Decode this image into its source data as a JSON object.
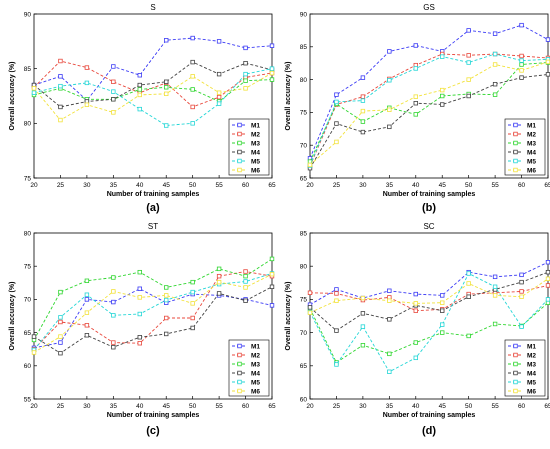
{
  "legend_labels": [
    "M1",
    "M2",
    "M3",
    "M4",
    "M5",
    "M6"
  ],
  "chart_data": [
    {
      "type": "line",
      "panel_label": "(a)",
      "title": "S",
      "xlabel": "Number of training samples",
      "ylabel": "Overall accuracy (%)",
      "x": [
        20,
        25,
        30,
        35,
        40,
        45,
        50,
        55,
        60,
        65
      ],
      "xlim": [
        20,
        65
      ],
      "ylim": [
        75,
        90
      ],
      "yticks": [
        75,
        80,
        85,
        90
      ],
      "grid": false,
      "legend_position": "bottom-right",
      "series": [
        {
          "name": "M1",
          "color": "#3b3bf5",
          "values": [
            83.5,
            84.3,
            82.1,
            85.2,
            84.4,
            87.6,
            87.8,
            87.5,
            86.9,
            87.1
          ]
        },
        {
          "name": "M2",
          "color": "#e8473b",
          "values": [
            83.3,
            85.7,
            85.1,
            83.8,
            82.8,
            83.7,
            81.5,
            82.4,
            84.2,
            84.6
          ]
        },
        {
          "name": "M3",
          "color": "#2fd62f",
          "values": [
            82.6,
            83.2,
            82.2,
            82.2,
            83.1,
            83.3,
            83.1,
            82.0,
            83.9,
            84.0
          ]
        },
        {
          "name": "M4",
          "color": "#404040",
          "values": [
            83.5,
            81.5,
            82.0,
            82.2,
            83.5,
            83.8,
            85.6,
            84.5,
            85.5,
            84.9
          ]
        },
        {
          "name": "M5",
          "color": "#23d6d6",
          "values": [
            82.8,
            83.4,
            83.7,
            82.9,
            81.3,
            79.8,
            80.0,
            81.8,
            84.5,
            85.0
          ]
        },
        {
          "name": "M6",
          "color": "#f2e23a",
          "values": [
            83.2,
            80.3,
            81.7,
            81.0,
            82.6,
            82.7,
            84.3,
            82.8,
            83.2,
            84.6
          ]
        }
      ]
    },
    {
      "type": "line",
      "panel_label": "(b)",
      "title": "GS",
      "xlabel": "Number of training samples",
      "ylabel": "Overall accuracy (%)",
      "x": [
        20,
        25,
        30,
        35,
        40,
        45,
        50,
        55,
        60,
        65
      ],
      "xlim": [
        20,
        65
      ],
      "ylim": [
        65,
        90
      ],
      "yticks": [
        65,
        70,
        75,
        80,
        85,
        90
      ],
      "grid": false,
      "legend_position": "bottom-right",
      "series": [
        {
          "name": "M1",
          "color": "#3b3bf5",
          "values": [
            68.0,
            77.7,
            80.3,
            84.3,
            85.2,
            84.3,
            87.5,
            87.0,
            88.3,
            86.1
          ]
        },
        {
          "name": "M2",
          "color": "#e8473b",
          "values": [
            66.8,
            76.2,
            77.4,
            80.1,
            82.2,
            83.9,
            83.7,
            83.9,
            83.6,
            83.3
          ]
        },
        {
          "name": "M3",
          "color": "#2fd62f",
          "values": [
            67.5,
            76.3,
            73.6,
            75.7,
            74.7,
            77.5,
            77.8,
            77.7,
            82.3,
            82.6
          ]
        },
        {
          "name": "M4",
          "color": "#404040",
          "values": [
            66.5,
            73.3,
            72.0,
            72.8,
            76.4,
            76.2,
            77.5,
            79.3,
            80.3,
            80.8
          ]
        },
        {
          "name": "M5",
          "color": "#23d6d6",
          "values": [
            66.9,
            76.6,
            76.8,
            79.9,
            81.7,
            83.5,
            82.6,
            83.9,
            82.9,
            83.1
          ]
        },
        {
          "name": "M6",
          "color": "#f2e23a",
          "values": [
            67.0,
            70.5,
            75.2,
            75.4,
            77.4,
            78.4,
            80.0,
            82.3,
            81.4,
            82.7
          ]
        }
      ]
    },
    {
      "type": "line",
      "panel_label": "(c)",
      "title": "ST",
      "xlabel": "Number of training samples",
      "ylabel": "Overall accuracy (%)",
      "x": [
        20,
        25,
        30,
        35,
        40,
        45,
        50,
        55,
        60,
        65
      ],
      "xlim": [
        20,
        65
      ],
      "ylim": [
        55,
        80
      ],
      "yticks": [
        55,
        60,
        65,
        70,
        75,
        80
      ],
      "grid": false,
      "legend_position": "bottom-right",
      "series": [
        {
          "name": "M1",
          "color": "#3b3bf5",
          "values": [
            62.7,
            63.5,
            70.0,
            69.6,
            71.6,
            69.5,
            70.8,
            70.6,
            70.0,
            69.1
          ]
        },
        {
          "name": "M2",
          "color": "#e8473b",
          "values": [
            62.5,
            66.6,
            66.1,
            63.5,
            63.4,
            67.2,
            67.2,
            73.5,
            74.2,
            73.5
          ]
        },
        {
          "name": "M3",
          "color": "#2fd62f",
          "values": [
            63.9,
            71.1,
            72.8,
            73.3,
            74.1,
            71.8,
            72.6,
            74.6,
            73.5,
            76.1
          ]
        },
        {
          "name": "M4",
          "color": "#404040",
          "values": [
            64.4,
            61.9,
            64.6,
            62.8,
            64.3,
            64.8,
            65.7,
            70.9,
            69.8,
            71.9
          ]
        },
        {
          "name": "M5",
          "color": "#23d6d6",
          "values": [
            62.4,
            67.3,
            70.7,
            67.6,
            67.8,
            69.9,
            71.1,
            72.3,
            72.7,
            73.9
          ]
        },
        {
          "name": "M6",
          "color": "#f2e23a",
          "values": [
            62.0,
            64.4,
            68.0,
            71.2,
            70.3,
            70.6,
            69.4,
            72.6,
            71.8,
            73.8
          ]
        }
      ]
    },
    {
      "type": "line",
      "panel_label": "(d)",
      "title": "SC",
      "xlabel": "Number of training samples",
      "ylabel": "Overall accuracy (%)",
      "x": [
        20,
        25,
        30,
        35,
        40,
        45,
        50,
        55,
        60,
        65
      ],
      "xlim": [
        20,
        65
      ],
      "ylim": [
        60,
        85
      ],
      "yticks": [
        60,
        65,
        70,
        75,
        80,
        85
      ],
      "grid": false,
      "legend_position": "bottom-right",
      "series": [
        {
          "name": "M1",
          "color": "#3b3bf5",
          "values": [
            74.2,
            76.5,
            75.2,
            76.3,
            75.8,
            75.6,
            79.1,
            78.4,
            78.7,
            80.6
          ]
        },
        {
          "name": "M2",
          "color": "#e8473b",
          "values": [
            76.0,
            75.9,
            74.9,
            75.3,
            73.3,
            73.5,
            75.8,
            76.0,
            76.2,
            77.1
          ]
        },
        {
          "name": "M3",
          "color": "#2fd62f",
          "values": [
            73.6,
            65.5,
            68.1,
            66.8,
            68.5,
            70.0,
            69.5,
            71.3,
            71.0,
            74.5
          ]
        },
        {
          "name": "M4",
          "color": "#404040",
          "values": [
            73.8,
            70.3,
            72.9,
            72.0,
            74.1,
            73.3,
            75.4,
            76.5,
            77.6,
            79.1
          ]
        },
        {
          "name": "M5",
          "color": "#23d6d6",
          "values": [
            73.1,
            65.2,
            70.9,
            64.1,
            66.2,
            71.2,
            78.9,
            76.9,
            70.9,
            75.0
          ]
        },
        {
          "name": "M6",
          "color": "#f2e23a",
          "values": [
            73.0,
            74.8,
            75.2,
            74.8,
            74.4,
            74.5,
            77.4,
            75.6,
            75.4,
            78.1
          ]
        }
      ]
    }
  ]
}
